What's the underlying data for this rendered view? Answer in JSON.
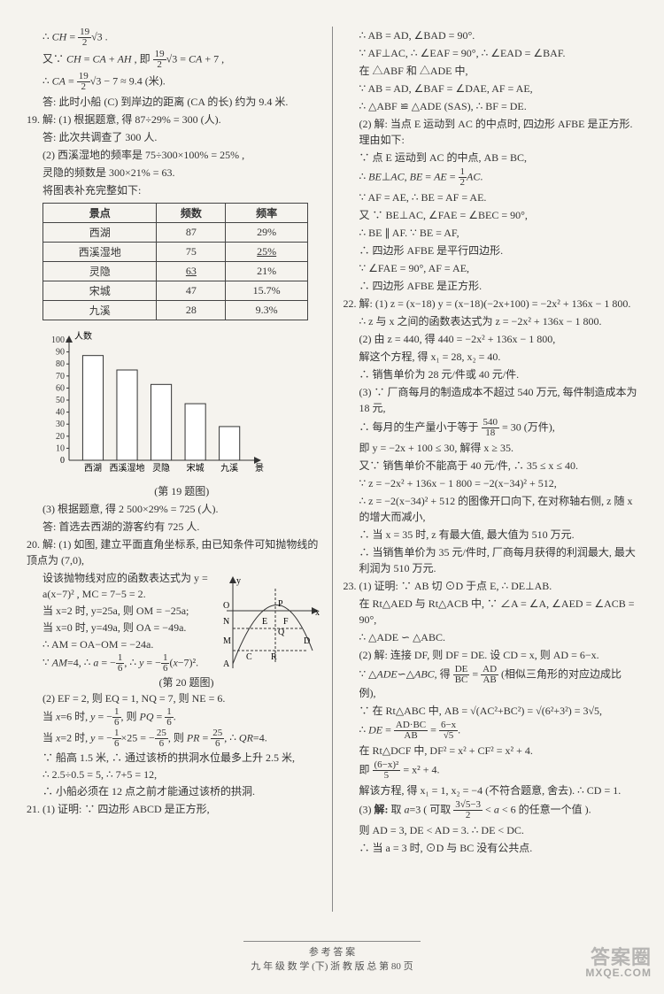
{
  "leftCol": {
    "preLines": [
      "∴ CH = (19/2)√3 .",
      "又∵ CH = CA + AH , 即 (19/2)√3 = CA + 7 ,",
      "∴ CA = (19/2)√3 − 7 ≈ 9.4 (米).",
      "答: 此时小船 (C) 到岸边的距离 (CA 的长) 约为 9.4 米."
    ],
    "q19": {
      "num": "19.",
      "lead": "解: (1) 根据题意, 得 87÷29% = 300 (人).",
      "linesA": [
        "答: 此次共调查了 300 人.",
        "(2) 西溪湿地的频率是 75÷300×100% = 25% ,",
        "灵隐的频数是 300×21% = 63.",
        "将图表补充完整如下:"
      ],
      "table": {
        "headers": [
          "景点",
          "频数",
          "频率"
        ],
        "rows": [
          [
            "西湖",
            "87",
            "29%"
          ],
          [
            "西溪湿地",
            "75",
            "25%"
          ],
          [
            "灵隐",
            "63",
            "21%"
          ],
          [
            "宋城",
            "47",
            "15.7%"
          ],
          [
            "九溪",
            "28",
            "9.3%"
          ]
        ]
      },
      "chart": {
        "yTitle": "人数",
        "xTitle": "景点",
        "yMax": 100,
        "yStep": 10,
        "categories": [
          "西湖",
          "西溪湿地",
          "灵隐",
          "宋城",
          "九溪"
        ],
        "values": [
          87,
          75,
          63,
          47,
          28
        ],
        "barColor": "#ffffff",
        "barStroke": "#333333",
        "axisColor": "#333333",
        "bgColor": "#f5f3ee",
        "fontSize": 10
      },
      "caption": "(第 19 题图)",
      "linesB": [
        "(3) 根据题意, 得 2 500×29% = 725 (人).",
        "答: 首选去西湖的游客约有 725 人."
      ]
    },
    "q20": {
      "num": "20.",
      "lead": "解: (1) 如图, 建立平面直角坐标系, 由已知条件可知抛物线的顶点为 (7,0),",
      "diagramCaption": "(第 20 题图)",
      "linesA": [
        "设该抛物线对应的函数表达式为 y = a(x−7)² , MC = 7−5 = 2.",
        "当 x=2 时, y=25a, 则 OM = −25a;",
        "当 x=0 时, y=49a, 则 OA = −49a.",
        "∴ AM = OA−OM = −24a.",
        "∵ AM = 4, ∴ a = −1/6, ∴ y = −(1/6)(x−7)².",
        "(2) EF = 2, 则 EQ = 1, NQ = 7, 则 NE = 6.",
        "当 x = 6 时, y = −1/6, 则 PQ = 1/6.",
        "当 x = 2 时, y = −(1/6)×25 = −25/6, 则 PR = 25/6, ∴ QR = 4.",
        "∵ 船高 1.5 米, ∴ 通过该桥的拱洞水位最多上升 2.5 米,",
        "∴ 2.5÷0.5 = 5, ∴ 7+5 = 12,",
        "∴ 小船必须在 12 点之前才能通过该桥的拱洞."
      ]
    },
    "q21": {
      "num": "21.",
      "lead": "(1) 证明: ∵ 四边形 ABCD 是正方形,"
    }
  },
  "rightCol": {
    "cont21": [
      "∴ AB = AD, ∠BAD = 90°.",
      "∵ AF⊥AC, ∴ ∠EAF = 90°, ∴ ∠EAD = ∠BAF.",
      "在 △ABF 和 △ADE 中,",
      "∵ AB = AD, ∠BAF = ∠DAE, AF = AE,",
      "∴ △ABF ≌ △ADE (SAS), ∴ BF = DE.",
      "(2) 解: 当点 E 运动到 AC 的中点时, 四边形 AFBE 是正方形. 理由如下:",
      "∵ 点 E 运动到 AC 的中点, AB = BC,",
      "∴ BE⊥AC, BE = AE = (1/2)AC.",
      "∵ AF = AE, ∴ BE = AF = AE.",
      "又 ∵ BE⊥AC, ∠FAE = ∠BEC = 90°,",
      "∴ BE ∥ AF. ∵ BE = AF,",
      "∴ 四边形 AFBE 是平行四边形.",
      "∵ ∠FAE = 90°, AF = AE,",
      "∴ 四边形 AFBE 是正方形."
    ],
    "q22": {
      "num": "22.",
      "lead": "解: (1) z = (x−18) y = (x−18)(−2x+100) = −2x² + 136x − 1 800.",
      "lines": [
        "∴ z 与 x 之间的函数表达式为 z = −2x² + 136x − 1 800.",
        "(2) 由 z = 440, 得 440 = −2x² + 136x − 1 800,",
        "解这个方程, 得 x₁ = 28, x₂ = 40.",
        "∴ 销售单价为 28 元/件或 40 元/件.",
        "(3) ∵ 厂商每月的制造成本不超过 540 万元, 每件制造成本为 18 元,",
        "∴ 每月的生产量小于等于 540/18 = 30 (万件),",
        "即 y = −2x + 100 ≤ 30, 解得 x ≥ 35.",
        "又∵ 销售单价不能高于 40 元/件, ∴ 35 ≤ x ≤ 40.",
        "∵ z = −2x² + 136x − 1 800 = −2(x−34)² + 512,",
        "∴ z = −2(x−34)² + 512 的图像开口向下, 在对称轴右侧, z 随 x 的增大而减小,",
        "∴ 当 x = 35 时, z 有最大值, 最大值为 510 万元.",
        "∴ 当销售单价为 35 元/件时, 厂商每月获得的利润最大, 最大利润为 510 万元."
      ]
    },
    "q23": {
      "num": "23.",
      "lead": "(1) 证明: ∵ AB 切 ⊙D 于点 E, ∴ DE⊥AB.",
      "lines": [
        "在 Rt△AED 与 Rt△ACB 中, ∵ ∠A = ∠A, ∠AED = ∠ACB = 90°,",
        "∴ △ADE ∽ △ABC.",
        "(2) 解: 连接 DF, 则 DF = DE. 设 CD = x, 则 AD = 6−x.",
        "∵ △ADE ∽ △ABC, 得 DE/BC = AD/AB (相似三角形的对应边成比例),",
        "∵ 在 Rt△ABC 中, AB = √(AC²+BC²) = √(6²+3²) = 3√5,",
        "∴ DE = (AD·BC)/AB = (6−x)/√5.",
        "在 Rt△DCF 中, DF² = x² + CF² = x² + 4.",
        "即 (6−x)²/5 = x² + 4.",
        "解该方程, 得 x₁ = 1, x₂ = −4 (不符合题意, 舍去). ∴ CD = 1.",
        "(3) 解: 取 a = 3 ( 可取 (3√5−3)/2 < a < 6 的任意一个值 ).",
        "则 AD = 3, DE < AD = 3. ∴ DE < DC.",
        "∴ 当 a = 3 时, ⊙D 与 BC 没有公共点."
      ]
    }
  },
  "footer": {
    "l1": "参 考 答 案",
    "l2": "九 年 级 数 学 (下)   浙 教 版   总 第 80 页"
  },
  "watermark": {
    "brand": "答案圈",
    "url": "MXQE.COM"
  }
}
